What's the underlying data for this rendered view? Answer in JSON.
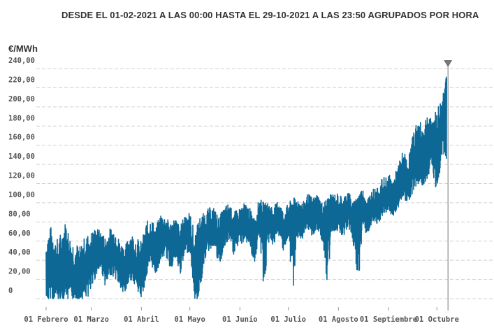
{
  "chart_data": {
    "type": "line",
    "title": "DESDE EL 01-02-2021 A LAS 00:00 HASTA EL 29-10-2021 A LAS 23:50 AGRUPADOS POR HORA",
    "ylabel": "€/MWh",
    "xlabel": "",
    "ylim": [
      0,
      240
    ],
    "yticks": [
      "0",
      "20,00",
      "40,00",
      "60,00",
      "80,00",
      "100,00",
      "120,00",
      "140,00",
      "160,00",
      "180,00",
      "200,00",
      "220,00",
      "240,00"
    ],
    "xticks": [
      "01 Febrero",
      "01 Marzo",
      "01 Abril",
      "01 Mayo",
      "01 Junio",
      "01 Julio",
      "01 Agosto",
      "01 Septiembre",
      "01 Octubre"
    ],
    "grid": true,
    "colors": {
      "line": "#0e6896",
      "grid": "#d0d0d0",
      "marker": "#777777"
    },
    "series": [
      {
        "x": [
          "2021-02-01",
          "2021-02-04",
          "2021-02-07",
          "2021-02-10",
          "2021-02-13",
          "2021-02-16",
          "2021-02-19",
          "2021-02-22",
          "2021-02-25",
          "2021-03-01",
          "2021-03-04",
          "2021-03-07",
          "2021-03-10",
          "2021-03-13",
          "2021-03-16",
          "2021-03-19",
          "2021-03-22",
          "2021-03-25",
          "2021-03-28",
          "2021-04-01",
          "2021-04-04",
          "2021-04-07",
          "2021-04-10",
          "2021-04-13",
          "2021-04-16",
          "2021-04-19",
          "2021-04-22",
          "2021-04-25",
          "2021-04-28",
          "2021-05-01",
          "2021-05-04",
          "2021-05-07",
          "2021-05-10",
          "2021-05-13",
          "2021-05-16",
          "2021-05-19",
          "2021-05-22",
          "2021-05-25",
          "2021-05-28",
          "2021-06-01",
          "2021-06-04",
          "2021-06-07",
          "2021-06-10",
          "2021-06-13",
          "2021-06-16",
          "2021-06-19",
          "2021-06-22",
          "2021-06-25",
          "2021-06-28",
          "2021-07-01",
          "2021-07-04",
          "2021-07-07",
          "2021-07-10",
          "2021-07-13",
          "2021-07-16",
          "2021-07-19",
          "2021-07-22",
          "2021-07-25",
          "2021-07-28",
          "2021-08-01",
          "2021-08-04",
          "2021-08-07",
          "2021-08-10",
          "2021-08-13",
          "2021-08-16",
          "2021-08-19",
          "2021-08-22",
          "2021-08-25",
          "2021-08-28",
          "2021-09-01",
          "2021-09-04",
          "2021-09-07",
          "2021-09-10",
          "2021-09-13",
          "2021-09-16",
          "2021-09-19",
          "2021-09-22",
          "2021-09-25",
          "2021-09-28",
          "2021-10-01",
          "2021-10-04",
          "2021-10-07"
        ],
        "values": [
          10,
          40,
          25,
          8,
          55,
          20,
          15,
          5,
          30,
          40,
          45,
          50,
          35,
          45,
          50,
          30,
          25,
          40,
          35,
          20,
          45,
          55,
          40,
          60,
          65,
          55,
          60,
          45,
          65,
          70,
          10,
          60,
          65,
          70,
          75,
          60,
          70,
          80,
          70,
          75,
          80,
          75,
          60,
          85,
          80,
          80,
          75,
          85,
          70,
          80,
          85,
          85,
          80,
          90,
          85,
          90,
          80,
          85,
          90,
          90,
          85,
          95,
          80,
          90,
          95,
          85,
          95,
          90,
          100,
          105,
          100,
          110,
          125,
          115,
          140,
          150,
          145,
          160,
          170,
          155,
          180,
          230
        ],
        "low": [
          0,
          0,
          0,
          0,
          0,
          0,
          0,
          0,
          0,
          5,
          25,
          30,
          10,
          25,
          20,
          10,
          5,
          20,
          15,
          0,
          20,
          35,
          25,
          40,
          45,
          30,
          40,
          25,
          45,
          50,
          0,
          0,
          40,
          50,
          55,
          30,
          50,
          60,
          45,
          55,
          60,
          55,
          35,
          65,
          5,
          60,
          55,
          65,
          50,
          60,
          5,
          65,
          60,
          70,
          65,
          70,
          60,
          5,
          70,
          70,
          65,
          75,
          60,
          5,
          75,
          65,
          80,
          75,
          85,
          90,
          85,
          95,
          105,
          100,
          110,
          120,
          115,
          125,
          140,
          100,
          150,
          145
        ],
        "high": [
          70,
          75,
          60,
          70,
          80,
          65,
          60,
          55,
          65,
          70,
          75,
          70,
          65,
          75,
          70,
          60,
          55,
          70,
          65,
          60,
          80,
          85,
          75,
          90,
          85,
          80,
          85,
          75,
          90,
          90,
          70,
          85,
          90,
          95,
          95,
          85,
          95,
          100,
          90,
          95,
          100,
          95,
          85,
          105,
          100,
          100,
          95,
          105,
          90,
          100,
          105,
          105,
          100,
          110,
          105,
          110,
          100,
          105,
          110,
          110,
          105,
          115,
          100,
          110,
          115,
          105,
          115,
          115,
          125,
          130,
          125,
          140,
          155,
          145,
          170,
          190,
          180,
          195,
          185,
          200,
          210,
          235
        ]
      }
    ]
  }
}
